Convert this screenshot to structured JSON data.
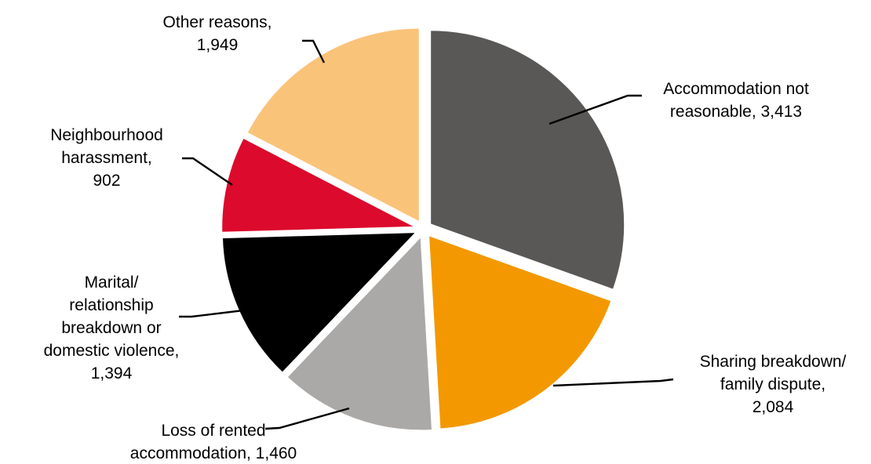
{
  "chart_data": {
    "type": "pie",
    "start_angle_deg": 0,
    "direction": "clockwise",
    "slices": [
      {
        "label": "Accommodation not reasonable",
        "value": 3413,
        "color": "#595856",
        "label_lines": [
          "Accommodation not",
          "reasonable, 3,413"
        ]
      },
      {
        "label": "Sharing breakdown/ family dispute",
        "value": 2084,
        "color": "#F39800",
        "label_lines": [
          "Sharing breakdown/",
          "family dispute,",
          "2,084"
        ]
      },
      {
        "label": "Loss of rented accommodation",
        "value": 1460,
        "color": "#ABA9A8",
        "label_lines": [
          "Loss of rented",
          "accommodation, 1,460"
        ]
      },
      {
        "label": "Marital/ relationship breakdown or domestic violence",
        "value": 1394,
        "color": "#000000",
        "label_lines": [
          "Marital/",
          "relationship",
          "breakdown or",
          "domestic violence,",
          "1,394"
        ]
      },
      {
        "label": "Neighbourhood harassment",
        "value": 902,
        "color": "#DC0A2C",
        "label_lines": [
          "Neighbourhood",
          "harassment,",
          "902"
        ]
      },
      {
        "label": "Other reasons",
        "value": 1949,
        "color": "#FAC37A",
        "label_lines": [
          "Other reasons,",
          "1,949"
        ]
      }
    ]
  }
}
